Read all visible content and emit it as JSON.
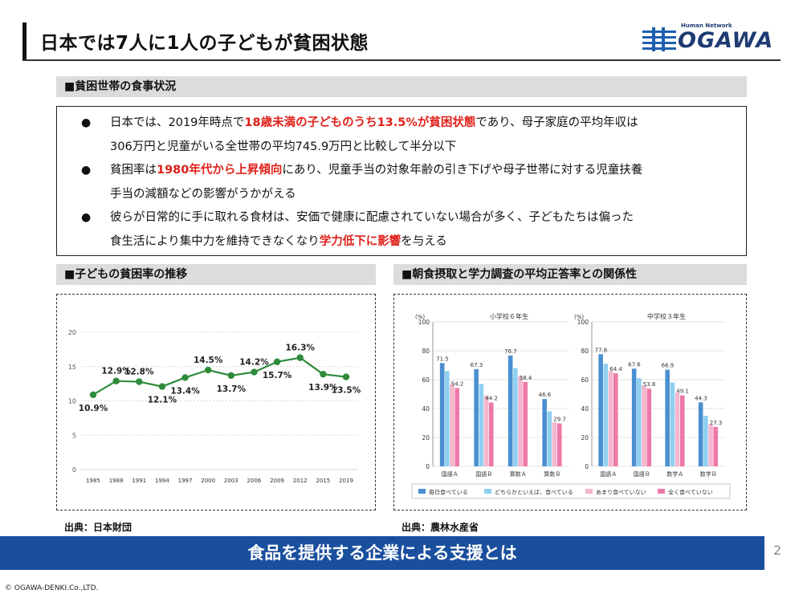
{
  "header": {
    "title": "日本では7人に1人の子どもが貧困状態",
    "logo_sub": "Human Network",
    "logo_main": "OGAWA"
  },
  "sections": {
    "food": "■貧困世帯の食事状況",
    "child_poverty": "■子どもの貧困率の推移",
    "breakfast": "■朝食摂取と学力調査の平均正答率との関係性"
  },
  "bullets": [
    {
      "line1": [
        {
          "t": "日本では、2019年時点で",
          "red": false
        },
        {
          "t": "18歳未満の子どものうち13.5%が貧困状態",
          "red": true
        },
        {
          "t": "であり、母子家庭の平均年収は",
          "red": false
        }
      ],
      "line2": "306万円と児童がいる全世帯の平均745.9万円と比較して半分以下"
    },
    {
      "line1": [
        {
          "t": "貧困率は",
          "red": false
        },
        {
          "t": "1980年代から上昇傾向",
          "red": true
        },
        {
          "t": "にあり、児童手当の対象年齢の引き下げや母子世帯に対する児童扶養",
          "red": false
        }
      ],
      "line2": "手当の減額などの影響がうかがえる"
    },
    {
      "line1": [
        {
          "t": "彼らが日常的に手に取れる食材は、安価で健康に配慮されていない場合が多く、子どもたちは偏った",
          "red": false
        }
      ],
      "line2_parts": [
        {
          "t": "食生活により集中力を維持できなくなり",
          "red": false
        },
        {
          "t": "学力低下に影響",
          "red": true
        },
        {
          "t": "を与える",
          "red": false
        }
      ]
    }
  ],
  "bullet_symbol": "●",
  "sources": {
    "left": "出典：日本財団",
    "right": "出典：農林水産省"
  },
  "banner": "食品を提供する企業による支援とは",
  "page_number": "2",
  "copyright": "© OGAWA-DENKI.Co.,LTD.",
  "colors": {
    "accent_red": "#e0201a",
    "banner_blue": "#1a4f9e",
    "line_green": "#2e8b3a",
    "bar_blue": "#4a90d0",
    "bar_lightblue": "#8fd0f0",
    "bar_lightpink": "#f4b6cc",
    "bar_pink": "#ee78a8"
  },
  "chart_data": [
    {
      "type": "line",
      "x": [
        "1985",
        "1988",
        "1991",
        "1994",
        "1997",
        "2000",
        "2003",
        "2006",
        "2009",
        "2012",
        "2015",
        "2019"
      ],
      "series": [
        {
          "values": [
            10.9,
            12.9,
            12.8,
            12.1,
            13.4,
            14.5,
            13.7,
            14.2,
            15.7,
            16.3,
            13.9,
            13.5
          ]
        }
      ],
      "data_labels": [
        "10.9%",
        "12.9%",
        "12.8%",
        "12.1%",
        "13.4%",
        "14.5%",
        "13.7%",
        "14.2%",
        "15.7%",
        "16.3%",
        "13.9%",
        "13.5%"
      ],
      "ylim": [
        0,
        20
      ],
      "yticks": [
        "0",
        "5",
        "10",
        "15",
        "20"
      ],
      "grid": true
    },
    {
      "type": "bar",
      "title": "小学校６年生",
      "categories": [
        "国語Ａ",
        "国語Ｂ",
        "算数Ａ",
        "算数Ｂ"
      ],
      "series": [
        {
          "name": "毎日食べている",
          "values": [
            71.5,
            67.3,
            76.7,
            46.6
          ]
        },
        {
          "name": "どちらかといえば、食べている",
          "values": [
            66.0,
            57.0,
            68.0,
            38.0
          ]
        },
        {
          "name": "あまり食べていない",
          "values": [
            57.0,
            49.0,
            62.0,
            30.5
          ]
        },
        {
          "name": "全く食べていない",
          "values": [
            54.2,
            44.2,
            58.4,
            29.7
          ]
        }
      ],
      "data_labels": [
        "71.5",
        "67.3",
        "76.7",
        "46.6",
        "54.2",
        "44.2",
        "58.4",
        "29.7"
      ],
      "ylabel": "(%)",
      "ylim": [
        0,
        100
      ],
      "yticks": [
        "0",
        "20",
        "40",
        "60",
        "80",
        "100"
      ]
    },
    {
      "type": "bar",
      "title": "中学校３年生",
      "categories": [
        "国語Ａ",
        "国語Ｂ",
        "数学Ａ",
        "数学Ｂ"
      ],
      "series": [
        {
          "name": "毎日食べている",
          "values": [
            77.6,
            67.6,
            66.9,
            44.3
          ]
        },
        {
          "name": "どちらかといえば、食べている",
          "values": [
            71.0,
            61.0,
            58.0,
            35.0
          ]
        },
        {
          "name": "あまり食べていない",
          "values": [
            66.0,
            56.0,
            51.0,
            29.0
          ]
        },
        {
          "name": "全く食べていない",
          "values": [
            64.4,
            53.8,
            49.1,
            27.3
          ]
        }
      ],
      "data_labels": [
        "77.6",
        "67.6",
        "66.9",
        "44.3",
        "64.4",
        "53.8",
        "49.1",
        "27.3"
      ],
      "ylabel": "(%)",
      "ylim": [
        0,
        100
      ],
      "yticks": [
        "0",
        "20",
        "40",
        "60",
        "80",
        "100"
      ]
    }
  ],
  "legend": [
    "毎日食べている",
    "どちらかといえば、食べている",
    "あまり食べていない",
    "全く食べていない"
  ]
}
